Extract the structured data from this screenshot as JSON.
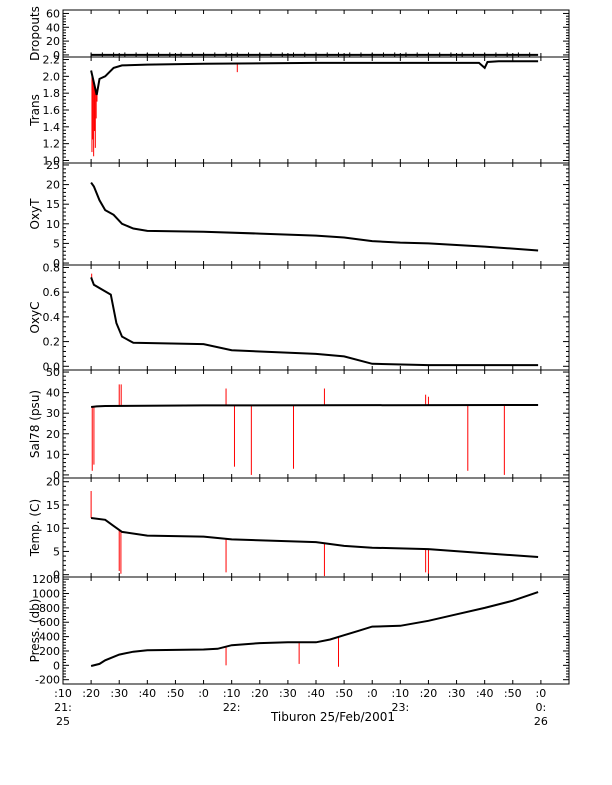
{
  "chart_data": {
    "type": "line",
    "title": "",
    "footer_label": "Tiburon 25/Feb/2001",
    "x_unit": "time (HH:MM), 25/Feb/2001 to 26/Feb/2001",
    "x_range": [
      "21:10",
      "00:10"
    ],
    "x_ticks": [
      {
        "t": "21:10",
        "l1": ":10",
        "l2": "21:",
        "l3": "25"
      },
      {
        "t": "21:20",
        "l1": ":20",
        "l2": "",
        "l3": ""
      },
      {
        "t": "21:30",
        "l1": ":30",
        "l2": "",
        "l3": ""
      },
      {
        "t": "21:40",
        "l1": ":40",
        "l2": "",
        "l3": ""
      },
      {
        "t": "21:50",
        "l1": ":50",
        "l2": "",
        "l3": ""
      },
      {
        "t": "22:00",
        "l1": ":0",
        "l2": "",
        "l3": ""
      },
      {
        "t": "22:10",
        "l1": ":10",
        "l2": "22:",
        "l3": ""
      },
      {
        "t": "22:20",
        "l1": ":20",
        "l2": "",
        "l3": ""
      },
      {
        "t": "22:30",
        "l1": ":30",
        "l2": "",
        "l3": ""
      },
      {
        "t": "22:40",
        "l1": ":40",
        "l2": "",
        "l3": ""
      },
      {
        "t": "22:50",
        "l1": ":50",
        "l2": "",
        "l3": ""
      },
      {
        "t": "23:00",
        "l1": ":0",
        "l2": "",
        "l3": ""
      },
      {
        "t": "23:10",
        "l1": ":10",
        "l2": "23:",
        "l3": ""
      },
      {
        "t": "23:20",
        "l1": ":20",
        "l2": "",
        "l3": ""
      },
      {
        "t": "23:30",
        "l1": ":30",
        "l2": "",
        "l3": ""
      },
      {
        "t": "23:40",
        "l1": ":40",
        "l2": "",
        "l3": ""
      },
      {
        "t": "23:50",
        "l1": ":50",
        "l2": "",
        "l3": ""
      },
      {
        "t": "00:00",
        "l1": ":0",
        "l2": "0:",
        "l3": "26"
      },
      {
        "t": "00:10",
        "l1": "",
        "l2": "",
        "l3": ""
      }
    ],
    "colors": {
      "main": "#000000",
      "spike": "#ff0000",
      "frame": "#000000"
    },
    "panels": [
      {
        "ylabel": "Dropouts",
        "ylim": [
          -3,
          65
        ],
        "yticks": [
          "0",
          "20",
          "40",
          "60"
        ],
        "ytick_values": [
          0,
          20,
          40,
          60
        ],
        "series": {
          "x": [
            "21:20",
            "23:59"
          ],
          "y": [
            0,
            0
          ]
        },
        "spikes": [],
        "markers": true
      },
      {
        "ylabel": "Trans",
        "ylim": [
          0.97,
          2.23
        ],
        "yticks": [
          "1.0",
          "1.2",
          "1.4",
          "1.6",
          "1.8",
          "2.0",
          "2.2"
        ],
        "ytick_values": [
          1.0,
          1.2,
          1.4,
          1.6,
          1.8,
          2.0,
          2.2
        ],
        "series": {
          "x": [
            "21:20",
            "21:22",
            "21:23",
            "21:25",
            "21:28",
            "21:31",
            "21:40",
            "22:00",
            "22:40",
            "23:20",
            "23:38",
            "23:40",
            "23:41",
            "23:45",
            "23:59"
          ],
          "y": [
            2.07,
            1.78,
            1.97,
            2.0,
            2.1,
            2.13,
            2.14,
            2.15,
            2.16,
            2.16,
            2.16,
            2.1,
            2.17,
            2.18,
            2.18
          ]
        },
        "spikes": [
          {
            "t": "21:20.3",
            "v": 1.1
          },
          {
            "t": "21:20.6",
            "v": 1.25
          },
          {
            "t": "21:20.9",
            "v": 1.05
          },
          {
            "t": "21:21.2",
            "v": 1.35
          },
          {
            "t": "21:21.5",
            "v": 1.15
          },
          {
            "t": "21:21.8",
            "v": 1.5
          },
          {
            "t": "21:22.1",
            "v": 1.7
          },
          {
            "t": "22:12",
            "v": 2.05
          }
        ]
      },
      {
        "ylabel": "OxyT",
        "ylim": [
          -0.5,
          25.5
        ],
        "yticks": [
          "0",
          "5",
          "10",
          "15",
          "20",
          "25"
        ],
        "ytick_values": [
          0,
          5,
          10,
          15,
          20,
          25
        ],
        "series": {
          "x": [
            "21:20",
            "21:21",
            "21:23",
            "21:25",
            "21:28",
            "21:31",
            "21:35",
            "21:40",
            "22:00",
            "22:20",
            "22:40",
            "22:50",
            "23:00",
            "23:10",
            "23:20",
            "23:40",
            "23:59"
          ],
          "y": [
            20.5,
            19.5,
            16,
            13.5,
            12.3,
            10,
            8.8,
            8.2,
            8.0,
            7.5,
            7.0,
            6.5,
            5.6,
            5.2,
            5.0,
            4.2,
            3.2
          ]
        },
        "spikes": []
      },
      {
        "ylabel": "OxyC",
        "ylim": [
          -0.03,
          0.82
        ],
        "yticks": [
          "0.0",
          "0.2",
          "0.4",
          "0.6",
          "0.8"
        ],
        "ytick_values": [
          0.0,
          0.2,
          0.4,
          0.6,
          0.8
        ],
        "series": {
          "x": [
            "21:20",
            "21:21",
            "21:24",
            "21:27",
            "21:29",
            "21:31",
            "21:35",
            "22:00",
            "22:10",
            "22:20",
            "22:40",
            "22:50",
            "23:00",
            "23:20",
            "23:59"
          ],
          "y": [
            0.72,
            0.66,
            0.62,
            0.58,
            0.35,
            0.24,
            0.19,
            0.18,
            0.13,
            0.12,
            0.1,
            0.08,
            0.02,
            0.01,
            0.01
          ]
        },
        "spikes": [
          {
            "t": "21:20.2",
            "v": 0.75
          }
        ]
      },
      {
        "ylabel": "Sal78 (psu)",
        "ylim": [
          -1.5,
          51
        ],
        "yticks": [
          "0",
          "10",
          "20",
          "30",
          "40",
          "50"
        ],
        "ytick_values": [
          0,
          10,
          20,
          30,
          40,
          50
        ],
        "series": {
          "x": [
            "21:20",
            "21:22",
            "21:25",
            "22:00",
            "23:59"
          ],
          "y": [
            33.0,
            33.3,
            33.5,
            33.8,
            34.0
          ]
        },
        "spikes": [
          {
            "t": "21:20.4",
            "v": 2
          },
          {
            "t": "21:21.0",
            "v": 5
          },
          {
            "t": "21:30",
            "v": 44
          },
          {
            "t": "21:30.7",
            "v": 44
          },
          {
            "t": "22:08",
            "v": 42
          },
          {
            "t": "22:11",
            "v": 4
          },
          {
            "t": "22:17",
            "v": 0
          },
          {
            "t": "22:32",
            "v": 3
          },
          {
            "t": "22:43",
            "v": 42
          },
          {
            "t": "23:19",
            "v": 39
          },
          {
            "t": "23:20",
            "v": 38
          },
          {
            "t": "23:34",
            "v": 2
          },
          {
            "t": "23:47",
            "v": 0
          }
        ]
      },
      {
        "ylabel": "Temp. (C)",
        "ylim": [
          -0.5,
          20.8
        ],
        "yticks": [
          "0",
          "5",
          "10",
          "15",
          "20"
        ],
        "ytick_values": [
          0,
          5,
          10,
          15,
          20
        ],
        "series": {
          "x": [
            "21:20",
            "21:25",
            "21:28",
            "21:31",
            "21:40",
            "22:00",
            "22:10",
            "22:40",
            "22:50",
            "23:00",
            "23:20",
            "23:40",
            "23:59"
          ],
          "y": [
            12.2,
            11.8,
            10.5,
            9.2,
            8.4,
            8.2,
            7.6,
            7.0,
            6.2,
            5.8,
            5.5,
            4.6,
            3.8
          ]
        },
        "spikes": [
          {
            "t": "21:20",
            "v": 18
          },
          {
            "t": "21:30",
            "v": 0.8
          },
          {
            "t": "21:30.6",
            "v": 0.2
          },
          {
            "t": "22:08",
            "v": 0.5
          },
          {
            "t": "22:43",
            "v": -0.3
          },
          {
            "t": "23:19",
            "v": 0.5
          },
          {
            "t": "23:20",
            "v": 0.2
          }
        ]
      },
      {
        "ylabel": "Press. (db)",
        "ylim": [
          -260,
          1230
        ],
        "yticks": [
          "-200",
          "0",
          "200",
          "400",
          "600",
          "800",
          "1000",
          "1200"
        ],
        "ytick_values": [
          -200,
          0,
          200,
          400,
          600,
          800,
          1000,
          1200
        ],
        "series": {
          "x": [
            "21:20",
            "21:23",
            "21:25",
            "21:30",
            "21:35",
            "21:40",
            "22:00",
            "22:05",
            "22:10",
            "22:20",
            "22:30",
            "22:40",
            "22:45",
            "22:50",
            "22:55",
            "23:00",
            "23:10",
            "23:20",
            "23:30",
            "23:40",
            "23:50",
            "23:59"
          ],
          "y": [
            -10,
            20,
            70,
            150,
            190,
            210,
            220,
            230,
            280,
            310,
            320,
            320,
            360,
            420,
            480,
            540,
            550,
            620,
            710,
            800,
            900,
            1020
          ]
        },
        "spikes": [
          {
            "t": "22:08",
            "v": 0
          },
          {
            "t": "22:34",
            "v": 20
          },
          {
            "t": "22:48",
            "v": -20
          }
        ]
      }
    ]
  }
}
